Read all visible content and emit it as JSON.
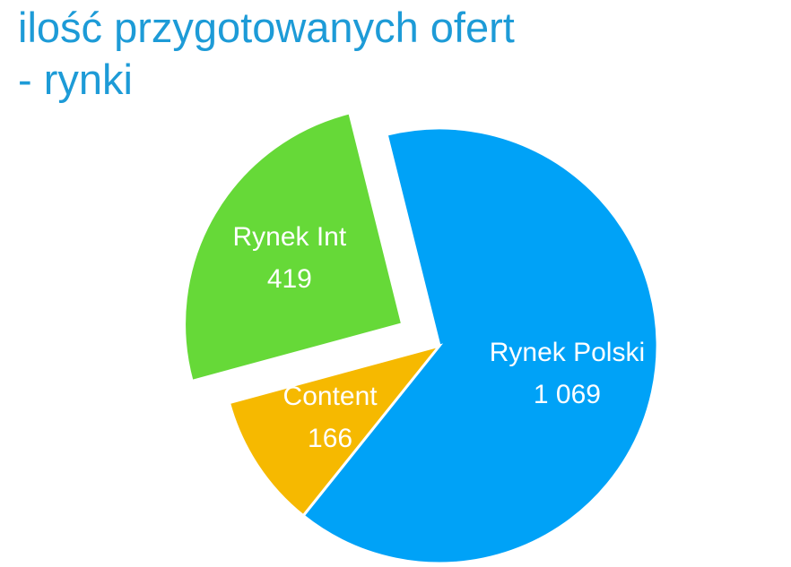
{
  "chart_data": {
    "type": "pie",
    "title": "ilość przygotowanych ofert\n- rynki",
    "categories": [
      "Rynek Polski",
      "Content",
      "Rynek Int"
    ],
    "values": [
      1069,
      166,
      419
    ],
    "value_labels": [
      "1 069",
      "166",
      "419"
    ],
    "colors": [
      "#00a2f7",
      "#f6b900",
      "#66d938"
    ]
  }
}
